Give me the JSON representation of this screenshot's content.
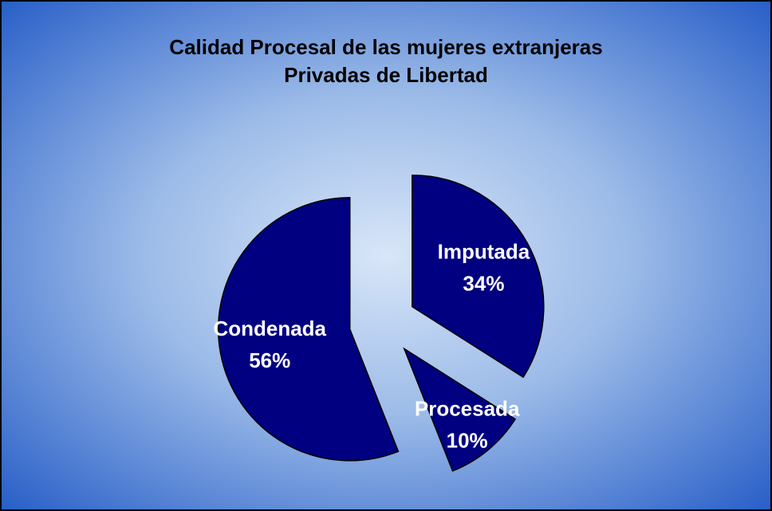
{
  "chart_data": {
    "type": "pie",
    "title": "Calidad Procesal de las mujeres extranjeras Privadas de Libertad",
    "categories": [
      "Imputada",
      "Procesada",
      "Condenada"
    ],
    "values": [
      34,
      10,
      56
    ],
    "value_labels": [
      "34%",
      "10%",
      "56%"
    ],
    "color": "#000080"
  }
}
